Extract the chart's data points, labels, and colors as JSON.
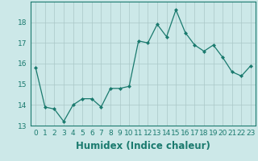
{
  "x": [
    0,
    1,
    2,
    3,
    4,
    5,
    6,
    7,
    8,
    9,
    10,
    11,
    12,
    13,
    14,
    15,
    16,
    17,
    18,
    19,
    20,
    21,
    22,
    23
  ],
  "y": [
    15.8,
    13.9,
    13.8,
    13.2,
    14.0,
    14.3,
    14.3,
    13.9,
    14.8,
    14.8,
    14.9,
    17.1,
    17.0,
    17.9,
    17.3,
    18.6,
    17.5,
    16.9,
    16.6,
    16.9,
    16.3,
    15.6,
    15.4,
    15.9
  ],
  "title": "",
  "xlabel": "Humidex (Indice chaleur)",
  "ylabel": "",
  "xlim": [
    -0.5,
    23.5
  ],
  "ylim": [
    13.0,
    19.0
  ],
  "yticks": [
    13,
    14,
    15,
    16,
    17,
    18
  ],
  "xticks": [
    0,
    1,
    2,
    3,
    4,
    5,
    6,
    7,
    8,
    9,
    10,
    11,
    12,
    13,
    14,
    15,
    16,
    17,
    18,
    19,
    20,
    21,
    22,
    23
  ],
  "line_color": "#1a7a6e",
  "marker_color": "#1a7a6e",
  "bg_color": "#cce8e8",
  "grid_color": "#aac8c8",
  "tick_label_fontsize": 6.5,
  "xlabel_fontsize": 8.5
}
